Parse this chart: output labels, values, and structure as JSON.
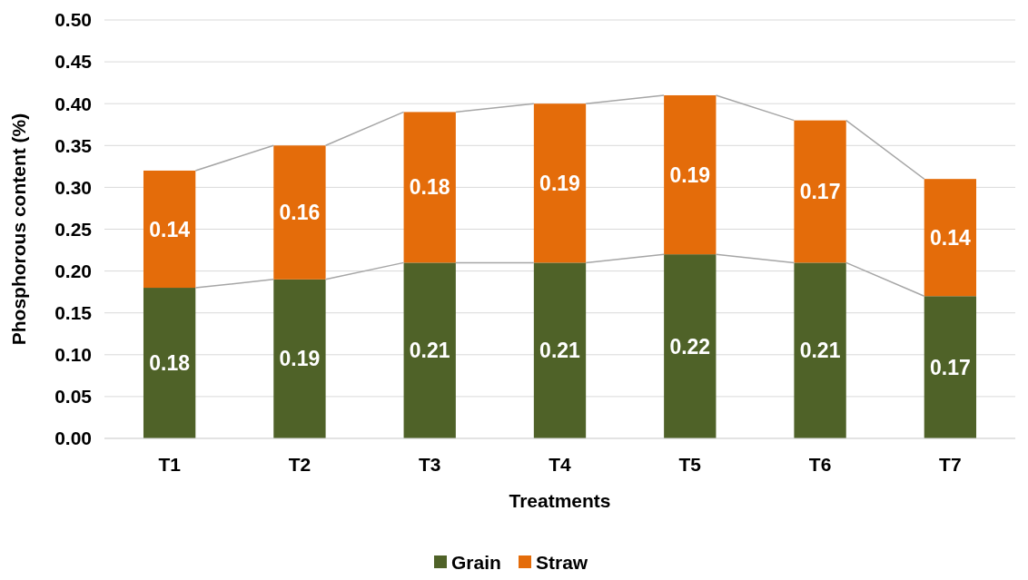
{
  "chart_data": {
    "type": "bar",
    "stacked": true,
    "xlabel": "Treatments",
    "ylabel": "Phosphorous content (%)",
    "categories": [
      "T1",
      "T2",
      "T3",
      "T4",
      "T5",
      "T6",
      "T7"
    ],
    "series": [
      {
        "name": "Grain",
        "color": "#4f6228",
        "values": [
          0.18,
          0.19,
          0.21,
          0.21,
          0.22,
          0.21,
          0.17
        ]
      },
      {
        "name": "Straw",
        "color": "#e46c0a",
        "values": [
          0.14,
          0.16,
          0.18,
          0.19,
          0.19,
          0.17,
          0.14
        ]
      }
    ],
    "ylim": [
      0,
      0.5
    ],
    "yticks": [
      {
        "value": 0,
        "label": "0.00"
      },
      {
        "value": 0.05,
        "label": "0.05"
      },
      {
        "value": 0.1,
        "label": "0.10"
      },
      {
        "value": 0.15,
        "label": "0.15"
      },
      {
        "value": 0.2,
        "label": "0.20"
      },
      {
        "value": 0.25,
        "label": "0.25"
      },
      {
        "value": 0.3,
        "label": "0.30"
      },
      {
        "value": 0.35,
        "label": "0.35"
      },
      {
        "value": 0.4,
        "label": "0.40"
      },
      {
        "value": 0.45,
        "label": "0.45"
      },
      {
        "value": 0.5,
        "label": "0.50"
      }
    ],
    "grid": "y",
    "legend": "bottom",
    "data_labels": true
  }
}
